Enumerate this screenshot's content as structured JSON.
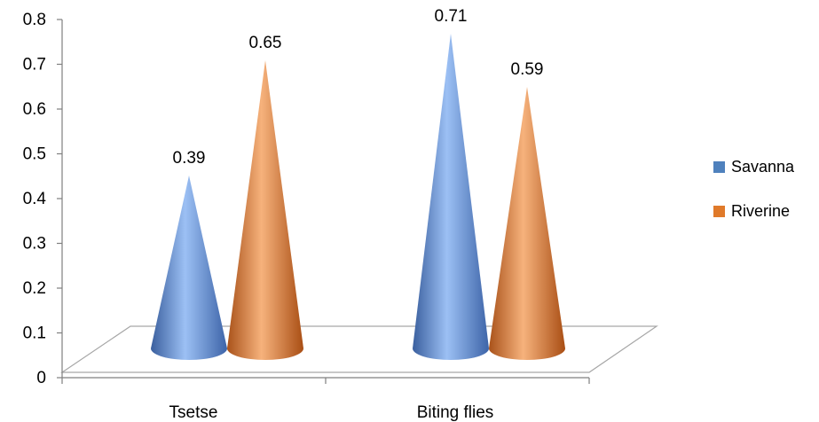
{
  "chart_data": {
    "type": "bar",
    "style": "3d-cone",
    "categories": [
      "Tsetse",
      "Biting flies"
    ],
    "series": [
      {
        "name": "Savanna",
        "values": [
          0.39,
          0.71
        ],
        "color": "#4f81bd"
      },
      {
        "name": "Riverine",
        "values": [
          0.65,
          0.59
        ],
        "color": "#e07a2a"
      }
    ],
    "ylim": [
      0,
      0.8
    ],
    "yticks": [
      "0",
      "0.1",
      "0.2",
      "0.3",
      "0.4",
      "0.5",
      "0.6",
      "0.7",
      "0.8"
    ],
    "data_labels": [
      "0.39",
      "0.65",
      "0.71",
      "0.59"
    ],
    "legend_position": "right",
    "grid": false
  }
}
